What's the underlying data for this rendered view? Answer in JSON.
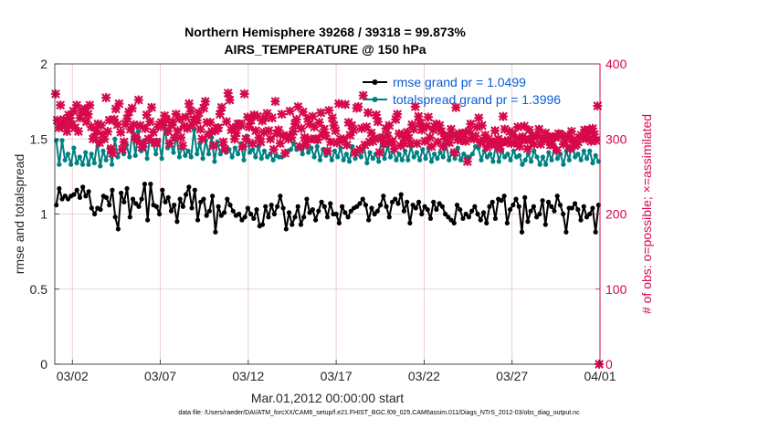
{
  "title_line1": "Northern Hemisphere 39268 / 39318 = 99.873%",
  "title_line2": "AIRS_TEMPERATURE @ 150 hPa",
  "footnote": "data file: /Users/raeder/DAI/ATM_forcXX/CAM6_setup/f.e21.FHIST_BGC.f09_025.CAM6assim.011/Diags_NTrS_2012-03/obs_diag_output.nc",
  "colors": {
    "rmse": "#000000",
    "spread": "#008080",
    "obs": "#d6094b",
    "grid": "#e6c3c7"
  },
  "chart_data": {
    "type": "line",
    "xlabel": "Mar.01,2012 00:00:00 start",
    "ylabel": "rmse and totalspread",
    "y2label": "# of obs: o=possible; ×=assimilated",
    "xlim": [
      0,
      31
    ],
    "ylim": [
      0,
      2
    ],
    "y2lim": [
      0,
      400
    ],
    "x_ticks": [
      1,
      6,
      11,
      16,
      21,
      26,
      31
    ],
    "x_ticklabels": [
      "03/02",
      "03/07",
      "03/12",
      "03/17",
      "03/22",
      "03/27",
      "04/01"
    ],
    "y_ticks": [
      "0",
      "0.5",
      "1",
      "1.5",
      "2"
    ],
    "y2_ticks": [
      "0",
      "100",
      "200",
      "300",
      "400"
    ],
    "grid": true,
    "legend_position": "top-right",
    "series": [
      {
        "name": "rmse grand pr = 1.0499",
        "axis": "left",
        "marker": "circle",
        "values": [
          1.06,
          1.17,
          1.1,
          1.12,
          1.1,
          1.12,
          1.13,
          1.16,
          1.11,
          1.18,
          1.12,
          1.15,
          1.04,
          1.0,
          1.04,
          1.03,
          1.12,
          1.11,
          1.06,
          1.16,
          0.98,
          0.9,
          1.14,
          1.08,
          1.17,
          0.98,
          1.1,
          1.07,
          1.05,
          1.1,
          1.2,
          0.96,
          1.2,
          1.06,
          1.05,
          1.0,
          1.16,
          1.08,
          1.11,
          1.02,
          1.06,
          0.95,
          1.1,
          1.05,
          1.13,
          1.18,
          1.04,
          1.16,
          0.96,
          1.08,
          1.1,
          0.99,
          1.02,
          1.12,
          0.88,
          1.05,
          0.99,
          1.01,
          1.1,
          1.06,
          1.02,
          0.99,
          1.0,
          0.96,
          0.98,
          1.04,
          1.0,
          0.97,
          1.03,
          0.92,
          0.93,
          1.05,
          0.98,
          1.06,
          1.0,
          1.05,
          1.12,
          1.04,
          0.9,
          1.01,
          0.93,
          0.98,
          1.05,
          0.93,
          0.98,
          1.1,
          1.01,
          1.03,
          0.96,
          1.02,
          1.08,
          1.05,
          0.98,
          1.07,
          1.0,
          1.0,
          0.94,
          1.05,
          1.01,
          0.98,
          1.02,
          1.04,
          1.05,
          1.07,
          1.1,
          1.06,
          0.96,
          1.04,
          1.0,
          1.02,
          1.06,
          1.12,
          1.05,
          0.98,
          1.08,
          1.1,
          1.07,
          1.13,
          1.02,
          1.08,
          0.94,
          1.06,
          1.04,
          1.08,
          1.0,
          1.05,
          1.03,
          0.97,
          1.08,
          1.03,
          1.07,
          1.05,
          1.0,
          0.98,
          0.96,
          0.94,
          1.06,
          1.03,
          0.97,
          1.0,
          0.98,
          1.02,
          1.05,
          1.0,
          0.96,
          1.01,
          0.94,
          1.05,
          1.08,
          0.97,
          1.1,
          1.09,
          1.12,
          0.94,
          1.03,
          1.06,
          1.1,
          1.05,
          0.88,
          1.11,
          0.95,
          1.02,
          1.05,
          0.98,
          1.0,
          1.09,
          0.93,
          1.08,
          1.05,
          1.02,
          1.12,
          1.06,
          1.0,
          0.88,
          1.04,
          1.04,
          1.07,
          1.03,
          0.96,
          1.05,
          0.98,
          1.0,
          1.04,
          0.88,
          1.06
        ]
      },
      {
        "name": "totalspread grand pr = 1.3996",
        "axis": "left",
        "marker": "circle",
        "values": [
          1.49,
          1.33,
          1.49,
          1.36,
          1.4,
          1.33,
          1.44,
          1.34,
          1.38,
          1.33,
          1.41,
          1.33,
          1.4,
          1.34,
          1.48,
          1.32,
          1.42,
          1.36,
          1.44,
          1.33,
          1.5,
          1.38,
          1.43,
          1.4,
          1.46,
          1.38,
          1.55,
          1.39,
          1.55,
          1.42,
          1.49,
          1.37,
          1.51,
          1.47,
          1.4,
          1.49,
          1.37,
          1.59,
          1.44,
          1.47,
          1.41,
          1.52,
          1.38,
          1.46,
          1.39,
          1.42,
          1.38,
          1.56,
          1.4,
          1.47,
          1.37,
          1.49,
          1.4,
          1.51,
          1.35,
          1.48,
          1.4,
          1.45,
          1.41,
          1.43,
          1.38,
          1.44,
          1.4,
          1.47,
          1.36,
          1.52,
          1.41,
          1.43,
          1.38,
          1.45,
          1.37,
          1.42,
          1.38,
          1.4,
          1.36,
          1.39,
          1.38,
          1.38,
          1.4,
          1.42,
          1.43,
          1.47,
          1.43,
          1.45,
          1.4,
          1.48,
          1.41,
          1.44,
          1.38,
          1.45,
          1.36,
          1.43,
          1.39,
          1.41,
          1.36,
          1.42,
          1.38,
          1.44,
          1.36,
          1.4,
          1.35,
          1.45,
          1.37,
          1.42,
          1.38,
          1.45,
          1.34,
          1.41,
          1.37,
          1.4,
          1.35,
          1.52,
          1.37,
          1.45,
          1.38,
          1.42,
          1.36,
          1.4,
          1.36,
          1.42,
          1.36,
          1.45,
          1.38,
          1.41,
          1.36,
          1.43,
          1.37,
          1.44,
          1.35,
          1.4,
          1.37,
          1.41,
          1.38,
          1.47,
          1.36,
          1.41,
          1.37,
          1.44,
          1.36,
          1.4,
          1.38,
          1.38,
          1.4,
          1.45,
          1.44,
          1.36,
          1.42,
          1.38,
          1.4,
          1.35,
          1.46,
          1.35,
          1.42,
          1.38,
          1.4,
          1.36,
          1.42,
          1.38,
          1.39,
          1.33,
          1.36,
          1.4,
          1.35,
          1.42,
          1.38,
          1.33,
          1.38,
          1.33,
          1.41,
          1.36,
          1.45,
          1.37,
          1.4,
          1.33,
          1.42,
          1.36,
          1.48,
          1.38,
          1.4,
          1.36,
          1.42,
          1.37,
          1.42,
          1.34,
          1.39,
          1.35
        ]
      },
      {
        "name": "# of obs assimilated",
        "axis": "right",
        "marker": "x",
        "values": [
          360,
          325,
          315,
          345,
          317,
          326,
          320,
          310,
          332,
          328,
          319,
          337,
          315,
          345,
          310,
          328,
          335,
          338,
          340,
          323,
          333,
          345,
          316,
          300,
          302,
          311,
          320,
          295,
          318,
          306,
          300,
          355,
          310,
          325,
          287,
          281,
          326,
          340,
          319,
          347,
          309,
          286,
          296,
          320,
          327,
          336,
          313,
          341,
          319,
          303,
          298,
          352,
          318,
          289,
          294,
          314,
          332,
          300,
          323,
          342,
          309,
          295,
          296,
          316,
          319,
          322,
          318,
          331,
          326,
          310,
          294,
          318,
          323,
          302,
          333,
          311,
          327,
          302,
          291,
          317,
          329,
          314,
          347,
          337,
          319,
          326,
          325,
          325,
          335,
          313,
          300,
          341,
          350,
          322,
          306,
          322,
          310,
          291,
          311,
          314,
          315,
          333,
          342,
          296,
          286,
          323,
          361,
          352,
          312,
          315,
          300,
          308,
          320,
          320,
          318,
          290,
          360,
          300,
          329,
          316,
          325,
          294,
          332,
          311,
          330,
          302,
          296,
          324,
          309,
          328,
          334,
          311,
          300,
          328,
          286,
          350,
          307,
          312,
          294,
          333,
          305,
          281,
          304,
          300,
          337,
          302,
          310,
          320,
          326,
          343,
          290,
          314,
          336,
          302,
          292,
          327,
          320,
          300,
          330,
          316,
          300,
          299,
          322,
          335,
          306,
          313,
          304,
          284,
          338,
          296,
          328,
          318,
          311,
          295,
          347,
          300,
          298,
          300,
          346,
          292,
          322,
          305,
          318,
          312,
          282,
          341,
          343,
          286,
          314,
          358,
          292,
          316,
          335,
          296,
          308,
          297,
          301,
          332,
          323,
          282,
          300,
          302,
          294,
          314,
          304,
          318,
          296,
          297,
          287,
          326,
          333,
          307,
          291,
          305,
          294,
          303,
          309,
          301,
          294,
          319,
          313,
          343,
          294,
          330,
          321,
          312,
          315,
          297,
          317,
          329,
          302,
          290,
          312,
          316,
          320,
          296,
          318,
          310,
          290,
          304,
          303,
          297,
          295,
          313,
          305,
          282,
          342,
          299,
          307,
          298,
          308,
          307,
          297,
          270,
          310,
          320,
          302,
          300,
          304,
          316,
          328,
          295,
          318,
          298,
          305,
          289,
          300,
          297,
          292,
          296,
          311,
          294,
          300,
          287,
          296,
          330,
          313,
          296,
          298,
          310,
          294,
          306,
          295,
          301,
          316,
          290,
          299,
          303,
          317,
          299,
          287,
          312,
          299,
          304,
          293,
          305,
          303,
          313,
          293,
          300,
          301,
          308,
          298,
          303,
          292,
          293,
          303,
          302,
          285,
          307,
          306,
          304,
          293,
          296,
          302,
          304,
          287,
          310,
          299,
          291,
          293,
          296,
          302,
          305,
          303,
          312,
          300,
          303,
          312,
          297,
          314,
          306,
          298,
          344,
          0
        ]
      }
    ]
  }
}
